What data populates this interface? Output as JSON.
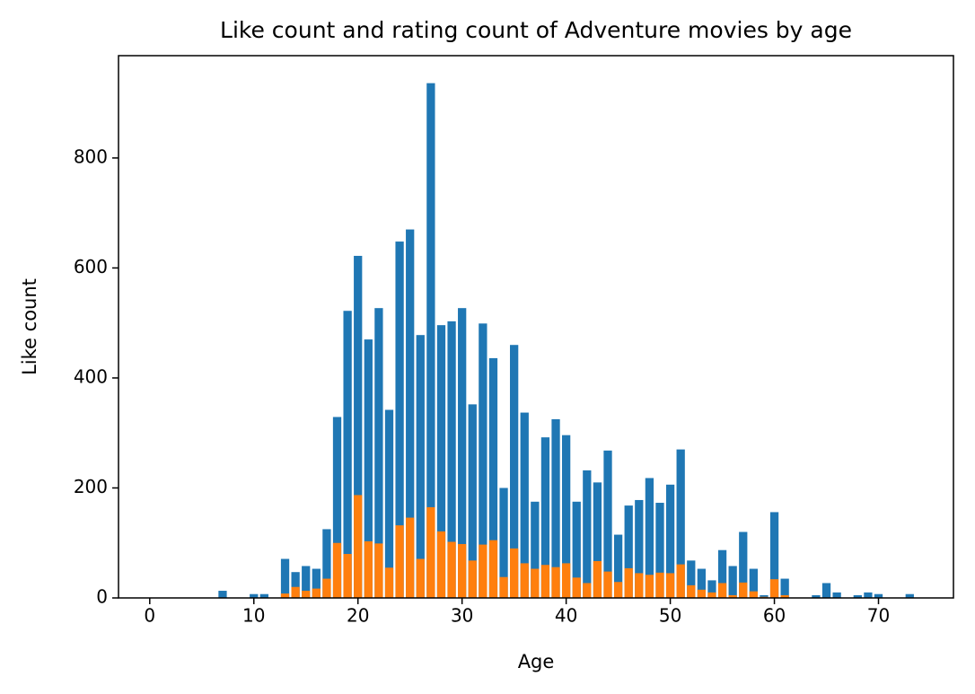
{
  "chart_data": {
    "type": "bar",
    "title": "Like count and rating count of Adventure movies by age",
    "x_label": "Age",
    "y_label": "Like count",
    "xlim": [
      -3,
      77.2
    ],
    "ylim": [
      0,
      986
    ],
    "xticks": [
      0,
      10,
      20,
      30,
      40,
      50,
      60,
      70
    ],
    "yticks": [
      0,
      200,
      400,
      600,
      800
    ],
    "bar_width": 0.8,
    "series": [
      {
        "color": "#1f77b4",
        "x": [
          7,
          10,
          11,
          13,
          14,
          15,
          16,
          17,
          18,
          19,
          20,
          21,
          22,
          23,
          24,
          25,
          26,
          27,
          28,
          29,
          30,
          31,
          32,
          33,
          34,
          35,
          36,
          37,
          38,
          39,
          40,
          41,
          42,
          43,
          44,
          45,
          46,
          47,
          48,
          49,
          50,
          51,
          52,
          53,
          54,
          55,
          56,
          57,
          58,
          59,
          60,
          61,
          64,
          65,
          66,
          68,
          69,
          70,
          73
        ],
        "values": [
          13,
          7,
          7,
          71,
          47,
          58,
          53,
          125,
          329,
          522,
          622,
          470,
          527,
          342,
          648,
          670,
          478,
          936,
          496,
          503,
          527,
          352,
          499,
          436,
          200,
          460,
          337,
          175,
          292,
          325,
          296,
          175,
          232,
          210,
          268,
          115,
          168,
          178,
          218,
          173,
          206,
          270,
          68,
          53,
          32,
          87,
          58,
          120,
          53,
          5,
          156,
          35,
          5,
          27,
          10,
          5,
          10,
          7,
          7
        ]
      },
      {
        "color": "#ff7f0e",
        "x": [
          13,
          14,
          15,
          16,
          17,
          18,
          19,
          20,
          21,
          22,
          23,
          24,
          25,
          26,
          27,
          28,
          29,
          30,
          31,
          32,
          33,
          34,
          35,
          36,
          37,
          38,
          39,
          40,
          41,
          42,
          43,
          44,
          45,
          46,
          47,
          48,
          49,
          50,
          51,
          52,
          53,
          54,
          55,
          56,
          57,
          58,
          59,
          60,
          61
        ],
        "values": [
          8,
          20,
          13,
          17,
          35,
          100,
          80,
          187,
          103,
          99,
          55,
          132,
          146,
          71,
          165,
          121,
          102,
          98,
          68,
          97,
          105,
          38,
          90,
          63,
          53,
          60,
          56,
          63,
          37,
          27,
          67,
          48,
          29,
          54,
          45,
          42,
          46,
          45,
          61,
          23,
          15,
          10,
          27,
          5,
          28,
          12,
          2,
          34,
          5
        ]
      }
    ]
  }
}
